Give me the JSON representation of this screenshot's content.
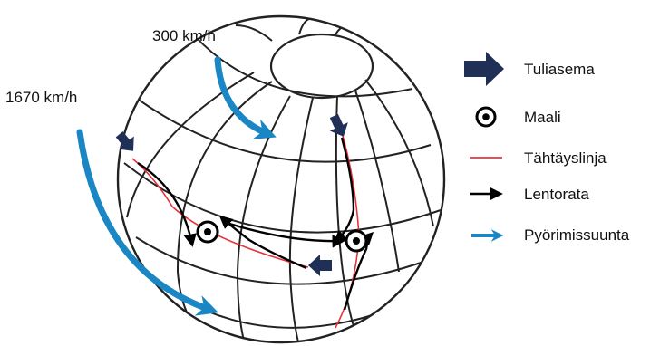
{
  "speeds": {
    "equator": "1670 km/h",
    "high_latitude": "300 km/h"
  },
  "legend": {
    "launch_station": "Tuliasema",
    "target": "Maali",
    "aim_line": "Tähtäyslinja",
    "trajectory": "Lentorata",
    "rotation_direction": "Pyörimissuunta"
  },
  "colors": {
    "launch_arrow": "#1f2f55",
    "aim_line": "#e8323a",
    "trajectory": "#000000",
    "rotation_arrow": "#1b86c4",
    "grid": "#222222"
  }
}
